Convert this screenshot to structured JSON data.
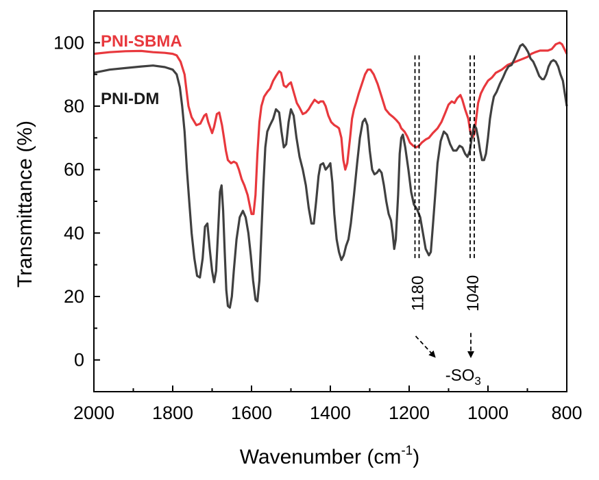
{
  "chart_data": {
    "type": "line",
    "xlabel": "Wavenumber (cm",
    "xlabel_sup": "-1",
    "xlabel_close": ")",
    "ylabel": "Transmittance (%)",
    "xlim": [
      2000,
      800
    ],
    "ylim": [
      -10,
      110
    ],
    "xticks": [
      2000,
      1800,
      1600,
      1400,
      1200,
      1000,
      800
    ],
    "yticks": [
      0,
      20,
      40,
      60,
      80,
      100
    ],
    "series": [
      {
        "name": "PNI-SBMA",
        "color": "#e8383d",
        "points": [
          [
            2000,
            96.5
          ],
          [
            1960,
            97
          ],
          [
            1920,
            97.3
          ],
          [
            1880,
            97.4
          ],
          [
            1850,
            97
          ],
          [
            1820,
            96.8
          ],
          [
            1800,
            96.5
          ],
          [
            1790,
            96
          ],
          [
            1780,
            94
          ],
          [
            1770,
            90
          ],
          [
            1765,
            85
          ],
          [
            1760,
            80
          ],
          [
            1752,
            76.5
          ],
          [
            1740,
            74
          ],
          [
            1730,
            74.5
          ],
          [
            1720,
            77
          ],
          [
            1715,
            77.5
          ],
          [
            1710,
            75
          ],
          [
            1700,
            71.5
          ],
          [
            1695,
            73.5
          ],
          [
            1688,
            77.5
          ],
          [
            1682,
            78
          ],
          [
            1675,
            74
          ],
          [
            1670,
            70
          ],
          [
            1665,
            66
          ],
          [
            1660,
            63
          ],
          [
            1652,
            62
          ],
          [
            1645,
            62.5
          ],
          [
            1638,
            62
          ],
          [
            1632,
            60
          ],
          [
            1625,
            57
          ],
          [
            1618,
            55
          ],
          [
            1610,
            52
          ],
          [
            1605,
            49
          ],
          [
            1600,
            46
          ],
          [
            1595,
            46
          ],
          [
            1590,
            52
          ],
          [
            1585,
            65
          ],
          [
            1580,
            75
          ],
          [
            1575,
            80
          ],
          [
            1568,
            83
          ],
          [
            1560,
            84.5
          ],
          [
            1553,
            85.5
          ],
          [
            1545,
            88
          ],
          [
            1538,
            89.5
          ],
          [
            1530,
            91
          ],
          [
            1525,
            90.5
          ],
          [
            1518,
            86.5
          ],
          [
            1512,
            86
          ],
          [
            1505,
            87
          ],
          [
            1500,
            87.5
          ],
          [
            1492,
            84
          ],
          [
            1485,
            81
          ],
          [
            1478,
            79.5
          ],
          [
            1470,
            77.5
          ],
          [
            1462,
            78
          ],
          [
            1455,
            79
          ],
          [
            1448,
            80.5
          ],
          [
            1440,
            82
          ],
          [
            1430,
            81
          ],
          [
            1425,
            81.5
          ],
          [
            1418,
            81.5
          ],
          [
            1412,
            80
          ],
          [
            1405,
            77
          ],
          [
            1398,
            75
          ],
          [
            1390,
            74
          ],
          [
            1383,
            73.5
          ],
          [
            1378,
            73
          ],
          [
            1372,
            70
          ],
          [
            1367,
            63
          ],
          [
            1362,
            60
          ],
          [
            1357,
            62
          ],
          [
            1350,
            70
          ],
          [
            1345,
            76
          ],
          [
            1340,
            79
          ],
          [
            1335,
            81
          ],
          [
            1328,
            84
          ],
          [
            1320,
            87
          ],
          [
            1312,
            90
          ],
          [
            1305,
            91.5
          ],
          [
            1298,
            91.5
          ],
          [
            1290,
            90
          ],
          [
            1280,
            87
          ],
          [
            1270,
            83
          ],
          [
            1260,
            79
          ],
          [
            1250,
            77.5
          ],
          [
            1240,
            76.5
          ],
          [
            1232,
            75.5
          ],
          [
            1225,
            74.5
          ],
          [
            1220,
            73
          ],
          [
            1212,
            72
          ],
          [
            1205,
            70.5
          ],
          [
            1198,
            68.5
          ],
          [
            1190,
            67.5
          ],
          [
            1182,
            67
          ],
          [
            1175,
            67.5
          ],
          [
            1168,
            68.5
          ],
          [
            1158,
            69.5
          ],
          [
            1150,
            70
          ],
          [
            1140,
            71.5
          ],
          [
            1128,
            73
          ],
          [
            1118,
            75
          ],
          [
            1108,
            78
          ],
          [
            1100,
            80.5
          ],
          [
            1092,
            81.5
          ],
          [
            1085,
            81
          ],
          [
            1078,
            82.5
          ],
          [
            1070,
            83.5
          ],
          [
            1065,
            82
          ],
          [
            1058,
            79
          ],
          [
            1050,
            76
          ],
          [
            1045,
            72
          ],
          [
            1040,
            70
          ],
          [
            1035,
            71
          ],
          [
            1030,
            76
          ],
          [
            1025,
            81
          ],
          [
            1018,
            84
          ],
          [
            1010,
            86
          ],
          [
            1000,
            88
          ],
          [
            990,
            89
          ],
          [
            980,
            90.5
          ],
          [
            965,
            91.5
          ],
          [
            950,
            93
          ],
          [
            940,
            93.5
          ],
          [
            930,
            94
          ],
          [
            920,
            94.5
          ],
          [
            910,
            95
          ],
          [
            900,
            95.5
          ],
          [
            890,
            96.5
          ],
          [
            880,
            97
          ],
          [
            868,
            97.5
          ],
          [
            858,
            97.5
          ],
          [
            848,
            97.5
          ],
          [
            838,
            98
          ],
          [
            828,
            99.5
          ],
          [
            818,
            100
          ],
          [
            812,
            99.5
          ],
          [
            806,
            98
          ],
          [
            800,
            96.5
          ]
        ]
      },
      {
        "name": "PNI-DM",
        "color": "#404040",
        "points": [
          [
            2000,
            90.5
          ],
          [
            1960,
            91.5
          ],
          [
            1920,
            92
          ],
          [
            1880,
            92.5
          ],
          [
            1850,
            92.8
          ],
          [
            1820,
            92.3
          ],
          [
            1800,
            91.5
          ],
          [
            1790,
            90
          ],
          [
            1782,
            86
          ],
          [
            1776,
            80
          ],
          [
            1770,
            72
          ],
          [
            1764,
            60
          ],
          [
            1758,
            50
          ],
          [
            1752,
            40
          ],
          [
            1745,
            32
          ],
          [
            1738,
            26.5
          ],
          [
            1731,
            26
          ],
          [
            1724,
            32
          ],
          [
            1718,
            42
          ],
          [
            1712,
            43
          ],
          [
            1706,
            35
          ],
          [
            1700,
            28
          ],
          [
            1695,
            24.5
          ],
          [
            1690,
            28
          ],
          [
            1685,
            40
          ],
          [
            1680,
            53
          ],
          [
            1676,
            55
          ],
          [
            1672,
            47
          ],
          [
            1668,
            34
          ],
          [
            1664,
            22
          ],
          [
            1660,
            17
          ],
          [
            1655,
            16.5
          ],
          [
            1650,
            20
          ],
          [
            1645,
            28
          ],
          [
            1638,
            38
          ],
          [
            1630,
            45
          ],
          [
            1622,
            47
          ],
          [
            1615,
            45
          ],
          [
            1608,
            40
          ],
          [
            1602,
            33
          ],
          [
            1596,
            25
          ],
          [
            1590,
            19
          ],
          [
            1585,
            18.5
          ],
          [
            1580,
            25
          ],
          [
            1575,
            40
          ],
          [
            1570,
            55
          ],
          [
            1565,
            67
          ],
          [
            1560,
            72
          ],
          [
            1553,
            74
          ],
          [
            1545,
            76
          ],
          [
            1538,
            79
          ],
          [
            1530,
            78
          ],
          [
            1524,
            72
          ],
          [
            1518,
            67
          ],
          [
            1512,
            68
          ],
          [
            1506,
            75
          ],
          [
            1500,
            79
          ],
          [
            1493,
            77
          ],
          [
            1486,
            70
          ],
          [
            1478,
            64
          ],
          [
            1470,
            60
          ],
          [
            1462,
            55
          ],
          [
            1455,
            48
          ],
          [
            1448,
            43
          ],
          [
            1442,
            43
          ],
          [
            1436,
            50
          ],
          [
            1430,
            58
          ],
          [
            1425,
            61.5
          ],
          [
            1418,
            62
          ],
          [
            1412,
            60
          ],
          [
            1405,
            61
          ],
          [
            1400,
            62
          ],
          [
            1395,
            56
          ],
          [
            1390,
            46
          ],
          [
            1384,
            38
          ],
          [
            1378,
            34
          ],
          [
            1372,
            31.5
          ],
          [
            1366,
            33
          ],
          [
            1360,
            36
          ],
          [
            1354,
            38
          ],
          [
            1348,
            43
          ],
          [
            1340,
            52
          ],
          [
            1332,
            62
          ],
          [
            1325,
            70
          ],
          [
            1318,
            75
          ],
          [
            1312,
            76
          ],
          [
            1306,
            74
          ],
          [
            1300,
            66
          ],
          [
            1294,
            60
          ],
          [
            1288,
            58.5
          ],
          [
            1282,
            59
          ],
          [
            1276,
            60
          ],
          [
            1270,
            59
          ],
          [
            1264,
            55
          ],
          [
            1258,
            50
          ],
          [
            1252,
            46
          ],
          [
            1246,
            44
          ],
          [
            1242,
            40
          ],
          [
            1238,
            35
          ],
          [
            1234,
            38
          ],
          [
            1228,
            52
          ],
          [
            1224,
            65
          ],
          [
            1220,
            70
          ],
          [
            1216,
            71
          ],
          [
            1210,
            67
          ],
          [
            1202,
            60
          ],
          [
            1195,
            53
          ],
          [
            1188,
            49
          ],
          [
            1180,
            47.5
          ],
          [
            1172,
            45
          ],
          [
            1165,
            40
          ],
          [
            1158,
            35
          ],
          [
            1150,
            33
          ],
          [
            1145,
            34
          ],
          [
            1140,
            42
          ],
          [
            1134,
            52
          ],
          [
            1128,
            62
          ],
          [
            1120,
            69
          ],
          [
            1112,
            72
          ],
          [
            1104,
            71
          ],
          [
            1096,
            68
          ],
          [
            1088,
            66
          ],
          [
            1080,
            66
          ],
          [
            1072,
            67.5
          ],
          [
            1065,
            67
          ],
          [
            1058,
            65
          ],
          [
            1052,
            64
          ],
          [
            1046,
            66
          ],
          [
            1040,
            71
          ],
          [
            1035,
            74
          ],
          [
            1030,
            73
          ],
          [
            1025,
            70
          ],
          [
            1020,
            66
          ],
          [
            1015,
            63
          ],
          [
            1010,
            63
          ],
          [
            1005,
            65
          ],
          [
            1000,
            70
          ],
          [
            995,
            76
          ],
          [
            990,
            80
          ],
          [
            985,
            83
          ],
          [
            978,
            84.5
          ],
          [
            970,
            87
          ],
          [
            962,
            89
          ],
          [
            955,
            91
          ],
          [
            948,
            92.5
          ],
          [
            940,
            93
          ],
          [
            932,
            95
          ],
          [
            925,
            97
          ],
          [
            918,
            99
          ],
          [
            912,
            99.5
          ],
          [
            905,
            98.5
          ],
          [
            898,
            97
          ],
          [
            892,
            95
          ],
          [
            885,
            94
          ],
          [
            878,
            92
          ],
          [
            870,
            89.5
          ],
          [
            863,
            88.5
          ],
          [
            858,
            88.5
          ],
          [
            852,
            90
          ],
          [
            846,
            92.5
          ],
          [
            840,
            94
          ],
          [
            834,
            94.5
          ],
          [
            828,
            94
          ],
          [
            822,
            92.5
          ],
          [
            816,
            90
          ],
          [
            810,
            88
          ],
          [
            805,
            84
          ],
          [
            800,
            80
          ]
        ]
      }
    ],
    "annotations": {
      "peak1_label": "1180",
      "peak2_label": "1040",
      "group_label": "-SO",
      "group_sub": "3"
    }
  }
}
